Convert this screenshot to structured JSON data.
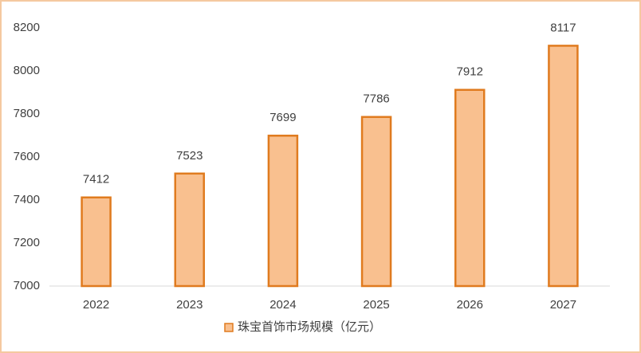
{
  "chart_data": {
    "type": "bar",
    "categories": [
      "2022",
      "2023",
      "2024",
      "2025",
      "2026",
      "2027"
    ],
    "series": [
      {
        "name": "珠宝首饰市场规模（亿元）",
        "color": "#f9c08f",
        "edge_color": "#e07b1f",
        "values": [
          7412,
          7523,
          7699,
          7786,
          7912,
          8117
        ]
      }
    ],
    "ylim": [
      7000,
      8200
    ],
    "yticks": [
      7000,
      7200,
      7400,
      7600,
      7800,
      8000,
      8200
    ],
    "grid": false,
    "data_labels": true,
    "legend": "bottom"
  }
}
